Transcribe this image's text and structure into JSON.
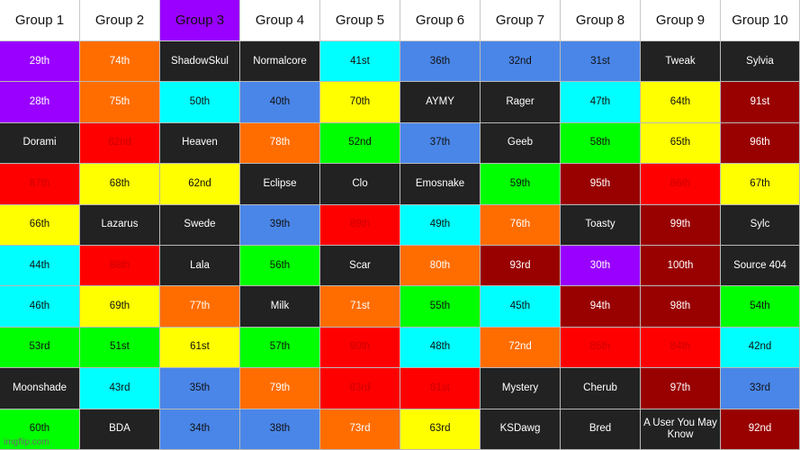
{
  "colors": {
    "purple": "#9900ff",
    "orange": "#ff6d01",
    "dark": "#222222",
    "cyan": "#00ffff",
    "blue": "#4a86e8",
    "yellow": "#ffff00",
    "maroon": "#990000",
    "red": "#ff0000",
    "green": "#00ff00"
  },
  "headers": [
    {
      "label": "Group 1",
      "color": "white"
    },
    {
      "label": "Group 2",
      "color": "white"
    },
    {
      "label": "Group 3",
      "color": "purple"
    },
    {
      "label": "Group 4",
      "color": "white"
    },
    {
      "label": "Group 5",
      "color": "white"
    },
    {
      "label": "Group 6",
      "color": "white"
    },
    {
      "label": "Group 7",
      "color": "white"
    },
    {
      "label": "Group 8",
      "color": "white"
    },
    {
      "label": "Group 9",
      "color": "white"
    },
    {
      "label": "Group 10",
      "color": "white"
    }
  ],
  "rows": [
    [
      {
        "text": "29th",
        "color": "purple"
      },
      {
        "text": "74th",
        "color": "orange"
      },
      {
        "text": "ShadowSkul",
        "color": "dark"
      },
      {
        "text": "Normalcore",
        "color": "dark"
      },
      {
        "text": "41st",
        "color": "cyan"
      },
      {
        "text": "36th",
        "color": "blue"
      },
      {
        "text": "32nd",
        "color": "blue"
      },
      {
        "text": "31st",
        "color": "blue"
      },
      {
        "text": "Tweak",
        "color": "dark"
      },
      {
        "text": "Sylvia",
        "color": "dark"
      }
    ],
    [
      {
        "text": "28th",
        "color": "purple"
      },
      {
        "text": "75th",
        "color": "orange"
      },
      {
        "text": "50th",
        "color": "cyan"
      },
      {
        "text": "40th",
        "color": "blue"
      },
      {
        "text": "70th",
        "color": "yellow"
      },
      {
        "text": "AYMY",
        "color": "dark"
      },
      {
        "text": "Rager",
        "color": "dark"
      },
      {
        "text": "47th",
        "color": "cyan"
      },
      {
        "text": "64th",
        "color": "yellow"
      },
      {
        "text": "91st",
        "color": "maroon"
      }
    ],
    [
      {
        "text": "Dorami",
        "color": "dark"
      },
      {
        "text": "82nd",
        "color": "red"
      },
      {
        "text": "Heaven",
        "color": "dark"
      },
      {
        "text": "78th",
        "color": "orange"
      },
      {
        "text": "52nd",
        "color": "green"
      },
      {
        "text": "37th",
        "color": "blue"
      },
      {
        "text": "Geeb",
        "color": "dark"
      },
      {
        "text": "58th",
        "color": "green"
      },
      {
        "text": "65th",
        "color": "yellow"
      },
      {
        "text": "96th",
        "color": "maroon"
      }
    ],
    [
      {
        "text": "87th",
        "color": "red"
      },
      {
        "text": "68th",
        "color": "yellow"
      },
      {
        "text": "62nd",
        "color": "yellow"
      },
      {
        "text": "Eclipse",
        "color": "dark"
      },
      {
        "text": "Clo",
        "color": "dark"
      },
      {
        "text": "Emosnake",
        "color": "dark"
      },
      {
        "text": "59th",
        "color": "green"
      },
      {
        "text": "95th",
        "color": "maroon"
      },
      {
        "text": "86th",
        "color": "red"
      },
      {
        "text": "67th",
        "color": "yellow"
      }
    ],
    [
      {
        "text": "66th",
        "color": "yellow"
      },
      {
        "text": "Lazarus",
        "color": "dark"
      },
      {
        "text": "Swede",
        "color": "dark"
      },
      {
        "text": "39th",
        "color": "blue"
      },
      {
        "text": "89th",
        "color": "red"
      },
      {
        "text": "49th",
        "color": "cyan"
      },
      {
        "text": "76th",
        "color": "orange"
      },
      {
        "text": "Toasty",
        "color": "dark"
      },
      {
        "text": "99th",
        "color": "maroon"
      },
      {
        "text": "Sylc",
        "color": "dark"
      }
    ],
    [
      {
        "text": "44th",
        "color": "cyan"
      },
      {
        "text": "88th",
        "color": "red"
      },
      {
        "text": "Lala",
        "color": "dark"
      },
      {
        "text": "56th",
        "color": "green"
      },
      {
        "text": "Scar",
        "color": "dark"
      },
      {
        "text": "80th",
        "color": "orange"
      },
      {
        "text": "93rd",
        "color": "maroon"
      },
      {
        "text": "30th",
        "color": "purple"
      },
      {
        "text": "100th",
        "color": "maroon"
      },
      {
        "text": "Source 404",
        "color": "dark"
      }
    ],
    [
      {
        "text": "46th",
        "color": "cyan"
      },
      {
        "text": "69th",
        "color": "yellow"
      },
      {
        "text": "77th",
        "color": "orange"
      },
      {
        "text": "Milk",
        "color": "dark"
      },
      {
        "text": "71st",
        "color": "orange"
      },
      {
        "text": "55th",
        "color": "green"
      },
      {
        "text": "45th",
        "color": "cyan"
      },
      {
        "text": "94th",
        "color": "maroon"
      },
      {
        "text": "98th",
        "color": "maroon"
      },
      {
        "text": "54th",
        "color": "green"
      }
    ],
    [
      {
        "text": "53rd",
        "color": "green"
      },
      {
        "text": "51st",
        "color": "green"
      },
      {
        "text": "61st",
        "color": "yellow"
      },
      {
        "text": "57th",
        "color": "green"
      },
      {
        "text": "90th",
        "color": "red"
      },
      {
        "text": "48th",
        "color": "cyan"
      },
      {
        "text": "72nd",
        "color": "orange"
      },
      {
        "text": "85th",
        "color": "red"
      },
      {
        "text": "84th",
        "color": "red"
      },
      {
        "text": "42nd",
        "color": "cyan"
      }
    ],
    [
      {
        "text": "Moonshade",
        "color": "dark"
      },
      {
        "text": "43rd",
        "color": "cyan"
      },
      {
        "text": "35th",
        "color": "blue"
      },
      {
        "text": "79th",
        "color": "orange"
      },
      {
        "text": "83rd",
        "color": "red"
      },
      {
        "text": "81st",
        "color": "red"
      },
      {
        "text": "Mystery",
        "color": "dark"
      },
      {
        "text": "Cherub",
        "color": "dark"
      },
      {
        "text": "97th",
        "color": "maroon"
      },
      {
        "text": "33rd",
        "color": "blue"
      }
    ],
    [
      {
        "text": "60th",
        "color": "green"
      },
      {
        "text": "BDA",
        "color": "dark"
      },
      {
        "text": "34th",
        "color": "blue"
      },
      {
        "text": "38th",
        "color": "blue"
      },
      {
        "text": "73rd",
        "color": "orange"
      },
      {
        "text": "63rd",
        "color": "yellow"
      },
      {
        "text": "KSDawg",
        "color": "dark"
      },
      {
        "text": "Bred",
        "color": "dark"
      },
      {
        "text": "A User You May Know",
        "color": "dark"
      },
      {
        "text": "92nd",
        "color": "maroon"
      }
    ]
  ],
  "watermark": "imgflip.com"
}
